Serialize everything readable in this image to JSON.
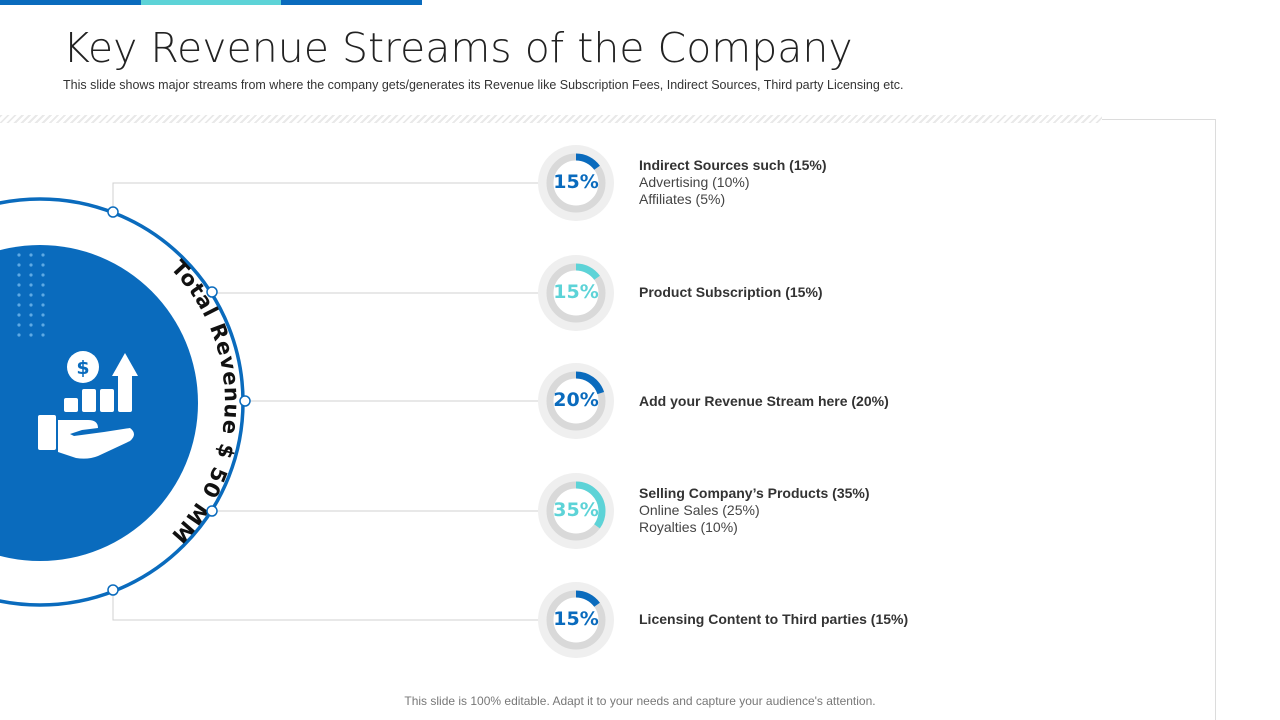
{
  "slide": {
    "title": "Key Revenue Streams of the Company",
    "subtitle": "This slide shows major streams from where the company gets/generates its Revenue  like Subscription Fees, Indirect Sources, Third  party Licensing etc.",
    "footer": "This slide is 100% editable. Adapt it to your needs and capture your audience's attention."
  },
  "colors": {
    "primary": "#0a6bbd",
    "accent": "#5dd3d7",
    "ring_track": "#d9d9d9",
    "halo": "#efefef",
    "connector": "#d0d0d0"
  },
  "center": {
    "label": "Total Revenue $ 50 MM",
    "icon": "revenue-growth-hand-icon"
  },
  "streams": [
    {
      "percent_label": "15%",
      "value": 15,
      "color": "#0a6bbd",
      "heading": "Indirect Sources such (15%)",
      "details": [
        "Advertising (10%)",
        "Affiliates (5%)"
      ]
    },
    {
      "percent_label": "15%",
      "value": 15,
      "color": "#5dd3d7",
      "heading": "Product Subscription (15%)",
      "details": []
    },
    {
      "percent_label": "20%",
      "value": 20,
      "color": "#0a6bbd",
      "heading": " Add  your Revenue Stream here (20%)",
      "details": []
    },
    {
      "percent_label": "35%",
      "value": 35,
      "color": "#5dd3d7",
      "heading": "Selling Company’s  Products (35%)",
      "details": [
        "Online Sales (25%)",
        "Royalties (10%)"
      ]
    },
    {
      "percent_label": "15%",
      "value": 15,
      "color": "#0a6bbd",
      "heading": "Licensing Content to  Third parties (15%)",
      "details": []
    }
  ],
  "topbar_colors": [
    "#0a6bbd",
    "#5dd3d7",
    "#0a6bbd"
  ]
}
